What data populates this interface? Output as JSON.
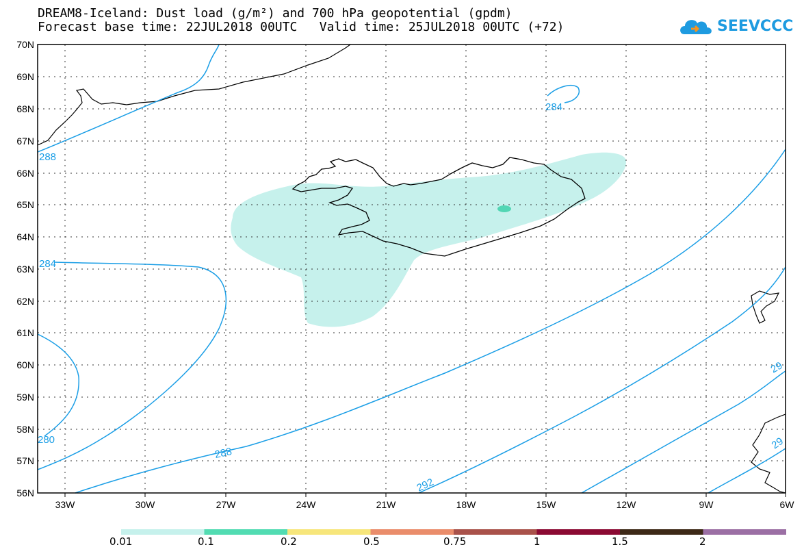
{
  "header": {
    "title_line1": "DREAM8-Iceland: Dust load (g/m²) and 700 hPa geopotential (gpdm)",
    "title_line2": "Forecast base time: 22JUL2018 00UTC   Valid time: 25JUL2018 00UTC (+72)"
  },
  "logo": {
    "text": "SEEVCCC",
    "icon": "cloud-icon",
    "color": "#1e9be0"
  },
  "map": {
    "lat_labels": [
      "70N",
      "69N",
      "68N",
      "67N",
      "66N",
      "65N",
      "64N",
      "63N",
      "62N",
      "61N",
      "60N",
      "59N",
      "58N",
      "57N",
      "56N"
    ],
    "lon_labels": [
      "33W",
      "30W",
      "27W",
      "24W",
      "21W",
      "18W",
      "15W",
      "12W",
      "9W",
      "6W"
    ],
    "contour_labels": [
      "284",
      "288",
      "288",
      "284",
      "280",
      "284",
      "288",
      "292",
      "29",
      "29"
    ],
    "contour_color": "#1a9ee6",
    "dust_color": "#c6f1ec",
    "dust_core_color": "#52d6b4"
  },
  "colorbar": {
    "labels": [
      "0.01",
      "0.1",
      "0.2",
      "0.5",
      "0.75",
      "1",
      "1.5",
      "2"
    ],
    "colors": [
      "#c6f1ec",
      "#52dcb2",
      "#f7e67b",
      "#ea8d6b",
      "#a9524a",
      "#8b0a33",
      "#3d2917",
      "#9b6fa4"
    ]
  }
}
